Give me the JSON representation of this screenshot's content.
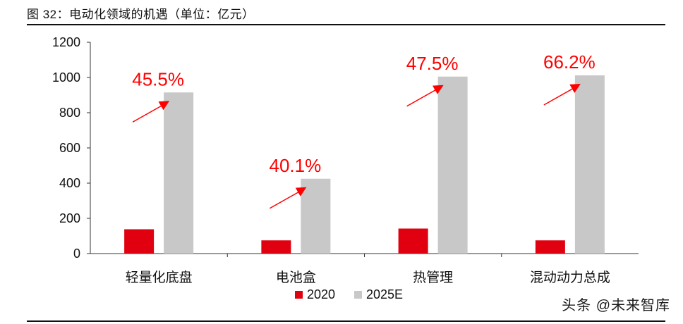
{
  "figure_title": "图 32：电动化领域的机遇（单位：亿元）",
  "watermark": "头条 @未来智库",
  "chart_data": {
    "type": "bar",
    "title": "",
    "xlabel": "",
    "ylabel": "",
    "categories": [
      "轻量化底盘",
      "电池盒",
      "热管理",
      "混动动力总成"
    ],
    "series": [
      {
        "name": "2020",
        "values": [
          138,
          75,
          142,
          75
        ],
        "color": "#e0000f"
      },
      {
        "name": "2025E",
        "values": [
          915,
          425,
          1005,
          1012
        ],
        "color": "#c8c8c8"
      }
    ],
    "annotations": [
      "45.5%",
      "40.1%",
      "47.5%",
      "66.2%"
    ],
    "annotation_color": "#ff0000",
    "ylim": [
      0,
      1200
    ],
    "yticks": [
      0,
      200,
      400,
      600,
      800,
      1000,
      1200
    ],
    "grid": false,
    "legend": "bottom-center"
  }
}
